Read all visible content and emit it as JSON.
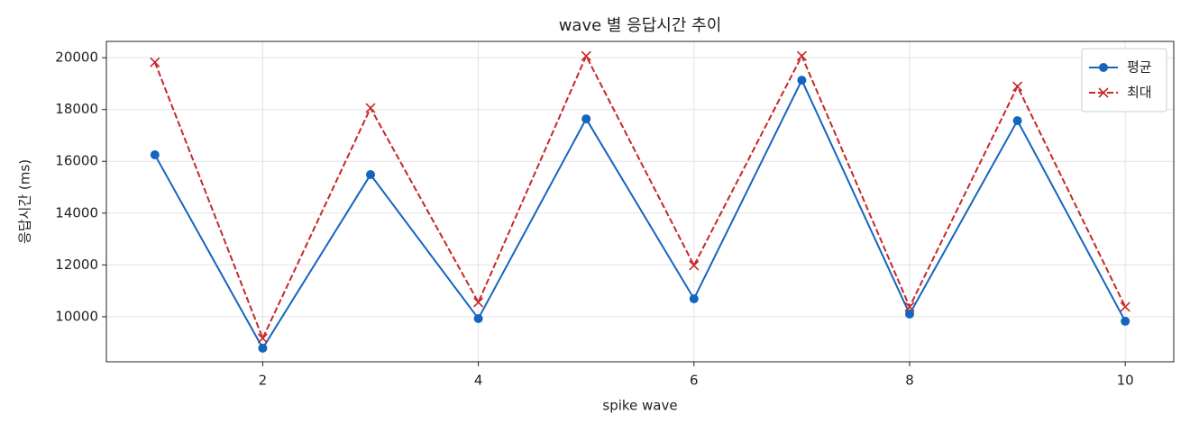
{
  "chart_data": {
    "type": "line",
    "title": "wave 별 응답시간 추이",
    "x_label": "spike wave",
    "y_label": "응답시간 (ms)",
    "x": [
      1,
      2,
      3,
      4,
      5,
      6,
      7,
      8,
      9,
      10
    ],
    "series": [
      {
        "name": "평균",
        "color": "#1565c0",
        "linestyle": "solid",
        "marker": "o",
        "values": [
          16250,
          8785,
          15486,
          9930,
          17639,
          10694,
          19132,
          10104,
          17570,
          9826
        ]
      },
      {
        "name": "최대",
        "color": "#c62828",
        "linestyle": "dashed",
        "marker": "x",
        "values": [
          19826,
          9167,
          18056,
          10556,
          20069,
          11979,
          20069,
          10382,
          18889,
          10382
        ]
      }
    ],
    "xlim": [
      0.55,
      10.45
    ],
    "xticks": [
      2,
      4,
      6,
      8,
      10
    ],
    "ylim": [
      8260,
      20630
    ],
    "yticks": [
      10000,
      12000,
      14000,
      16000,
      18000,
      20000
    ],
    "grid": true,
    "legend": "upper right"
  }
}
